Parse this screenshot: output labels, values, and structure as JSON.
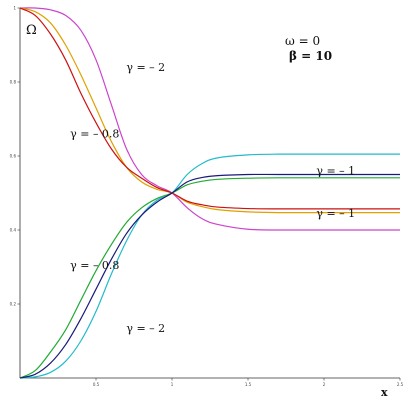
{
  "chart_data": {
    "type": "line",
    "title_lines": [
      "ω = 0",
      "β = 10"
    ],
    "ylabel": "Ω",
    "xlabel": "x",
    "xlim": [
      0,
      2.5
    ],
    "ylim": [
      0,
      1
    ],
    "x_ticks": [
      "0.5",
      "1",
      "1.5",
      "2",
      "2.5"
    ],
    "y_ticks": [
      "0.2",
      "0.4",
      "0.6",
      "0.8",
      "1"
    ],
    "x": [
      0,
      0.1,
      0.2,
      0.3,
      0.4,
      0.5,
      0.6,
      0.7,
      0.8,
      0.9,
      1.0,
      1.1,
      1.2,
      1.3,
      1.5,
      1.7,
      2.0,
      2.5
    ],
    "series": [
      {
        "color": "#cc44cc",
        "values": [
          1.0,
          1.0,
          0.995,
          0.98,
          0.94,
          0.86,
          0.74,
          0.62,
          0.55,
          0.52,
          0.5,
          0.46,
          0.43,
          0.415,
          0.402,
          0.4,
          0.4,
          0.4
        ]
      },
      {
        "color": "#e0a000",
        "values": [
          1.0,
          0.99,
          0.96,
          0.9,
          0.82,
          0.73,
          0.64,
          0.57,
          0.53,
          0.51,
          0.5,
          0.475,
          0.463,
          0.455,
          0.449,
          0.447,
          0.447,
          0.447
        ]
      },
      {
        "color": "#cc1111",
        "values": [
          1.0,
          0.98,
          0.93,
          0.86,
          0.77,
          0.69,
          0.62,
          0.57,
          0.54,
          0.515,
          0.5,
          0.478,
          0.468,
          0.462,
          0.458,
          0.457,
          0.457,
          0.457
        ]
      },
      {
        "color": "#22bbcc",
        "values": [
          0.0,
          0.003,
          0.015,
          0.045,
          0.1,
          0.18,
          0.28,
          0.37,
          0.44,
          0.48,
          0.5,
          0.55,
          0.58,
          0.595,
          0.603,
          0.605,
          0.605,
          0.605
        ]
      },
      {
        "color": "#22aa33",
        "values": [
          0.0,
          0.02,
          0.07,
          0.13,
          0.21,
          0.29,
          0.36,
          0.42,
          0.46,
          0.485,
          0.5,
          0.522,
          0.532,
          0.537,
          0.54,
          0.541,
          0.541,
          0.541
        ]
      },
      {
        "color": "#1a1a7a",
        "values": [
          0.0,
          0.01,
          0.04,
          0.09,
          0.16,
          0.24,
          0.32,
          0.39,
          0.44,
          0.475,
          0.5,
          0.53,
          0.542,
          0.547,
          0.55,
          0.55,
          0.55,
          0.55
        ]
      }
    ],
    "annotations": [
      {
        "text": "γ = – 2",
        "x": 0.7,
        "y": 0.83
      },
      {
        "text": "γ = – 0.8",
        "x": 0.33,
        "y": 0.65
      },
      {
        "text": "γ = – 1",
        "x": 1.95,
        "y": 0.55
      },
      {
        "text": "γ = – 1",
        "x": 1.95,
        "y": 0.435
      },
      {
        "text": "γ = – 0.8",
        "x": 0.33,
        "y": 0.295
      },
      {
        "text": "γ = – 2",
        "x": 0.7,
        "y": 0.125
      }
    ],
    "grid": false
  }
}
